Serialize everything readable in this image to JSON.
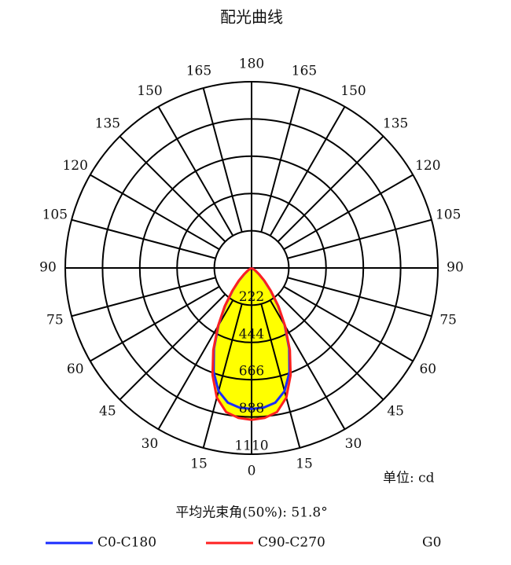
{
  "chart_data": {
    "type": "polar",
    "title": "配光曲线",
    "angles": [
      0,
      5,
      10,
      15,
      20,
      25,
      30,
      35,
      40,
      45,
      50,
      55,
      60,
      65,
      70,
      75,
      80,
      85,
      90
    ],
    "series": [
      {
        "name": "C0-C180",
        "color": "#1a2cff",
        "values": [
          840,
          835,
          815,
          760,
          660,
          530,
          395,
          275,
          175,
          105,
          55,
          25,
          8,
          0,
          0,
          0,
          0,
          0,
          0
        ]
      },
      {
        "name": "C90-C270",
        "color": "#ff2020",
        "values": [
          905,
          897,
          872,
          800,
          680,
          540,
          400,
          280,
          180,
          110,
          60,
          30,
          10,
          0,
          0,
          0,
          0,
          0,
          0
        ]
      }
    ],
    "fill_color": "#ffff00",
    "rlim": [
      0,
      1110
    ],
    "rticks": [
      222,
      444,
      666,
      888,
      1110
    ],
    "angle_ticks": [
      0,
      15,
      30,
      45,
      60,
      75,
      90,
      105,
      120,
      135,
      150,
      165,
      180
    ],
    "unit": "单位: cd",
    "beam_angle": "平均光束角(50%): 51.8°",
    "extra_legend": "G0"
  }
}
